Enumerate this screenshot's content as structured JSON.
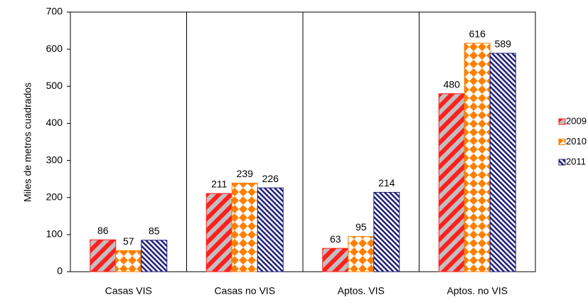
{
  "chart_data": {
    "type": "bar",
    "ylabel": "Miles de metros cuadrados",
    "categories": [
      "Casas VIS",
      "Casas no VIS",
      "Aptos. VIS",
      "Aptos. no VIS"
    ],
    "series": [
      {
        "name": "2009",
        "color": "#ff2020",
        "pattern": "stripes",
        "values": [
          86,
          211,
          63,
          480
        ]
      },
      {
        "name": "2010",
        "color": "#ff7f00",
        "pattern": "diamonds",
        "values": [
          57,
          239,
          95,
          616
        ]
      },
      {
        "name": "2011",
        "color": "#1f1f7a",
        "pattern": "hatch",
        "values": [
          85,
          226,
          214,
          589
        ]
      }
    ],
    "ylim": [
      0,
      700
    ],
    "yticks": [
      0,
      100,
      200,
      300,
      400,
      500,
      600,
      700
    ],
    "legend": "right"
  }
}
